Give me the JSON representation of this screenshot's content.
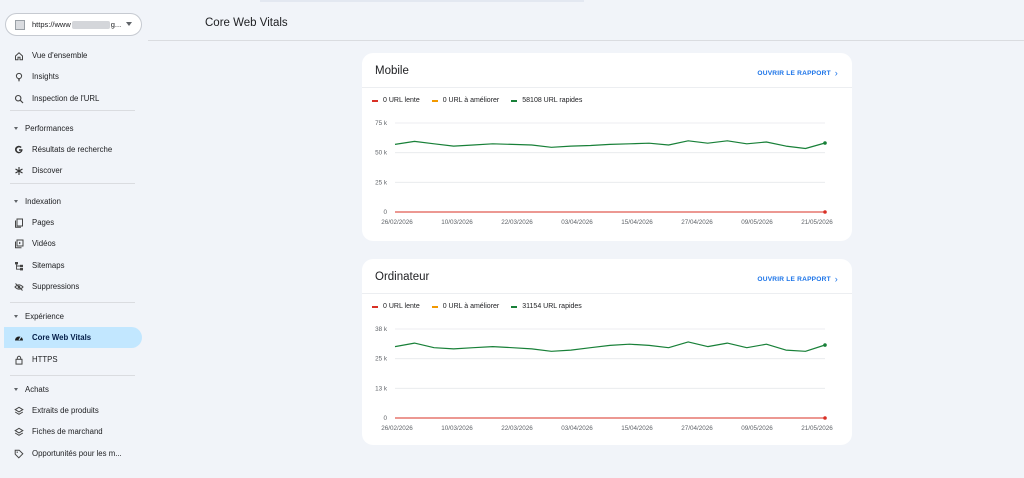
{
  "property": {
    "url": "https://www",
    "url_tail": "g..."
  },
  "sidebar": {
    "items_top": [
      {
        "label": "Vue d'ensemble",
        "icon": "home-icon"
      },
      {
        "label": "Insights",
        "icon": "lightbulb-icon"
      },
      {
        "label": "Inspection de l'URL",
        "icon": "search-icon"
      }
    ],
    "sections": [
      {
        "title": "Performances",
        "items": [
          {
            "label": "Résultats de recherche",
            "icon": "google-g-icon"
          },
          {
            "label": "Discover",
            "icon": "asterisk-icon"
          }
        ]
      },
      {
        "title": "Indexation",
        "items": [
          {
            "label": "Pages",
            "icon": "pages-icon"
          },
          {
            "label": "Vidéos",
            "icon": "video-icon"
          },
          {
            "label": "Sitemaps",
            "icon": "sitemap-icon"
          },
          {
            "label": "Suppressions",
            "icon": "eye-off-icon"
          }
        ]
      },
      {
        "title": "Expérience",
        "items": [
          {
            "label": "Core Web Vitals",
            "icon": "speedometer-icon",
            "active": true
          },
          {
            "label": "HTTPS",
            "icon": "lock-icon"
          }
        ]
      },
      {
        "title": "Achats",
        "items": [
          {
            "label": "Extraits de produits",
            "icon": "layers-icon"
          },
          {
            "label": "Fiches de marchand",
            "icon": "layers-icon"
          },
          {
            "label": "Opportunités pour les m...",
            "icon": "tag-icon"
          }
        ]
      }
    ]
  },
  "page": {
    "title": "Core Web Vitals"
  },
  "colors": {
    "slow": "#d93025",
    "improve": "#f29900",
    "fast": "#188038",
    "link": "#1a73e8",
    "active_nav": "#c2e7ff"
  },
  "cards": [
    {
      "title": "Mobile",
      "link": "OUVRIR LE RAPPORT",
      "legend": [
        "0 URL lente",
        "0 URL à améliorer",
        "58108 URL rapides"
      ]
    },
    {
      "title": "Ordinateur",
      "link": "OUVRIR LE RAPPORT",
      "legend": [
        "0 URL lente",
        "0 URL à améliorer",
        "31154 URL rapides"
      ]
    }
  ],
  "chart_data": [
    {
      "type": "line",
      "title": "Mobile",
      "x": [
        "26/02/2026",
        "02/03/2026",
        "06/03/2026",
        "10/03/2026",
        "14/03/2026",
        "18/03/2026",
        "22/03/2026",
        "26/03/2026",
        "30/03/2026",
        "03/04/2026",
        "07/04/2026",
        "11/04/2026",
        "15/04/2026",
        "19/04/2026",
        "23/04/2026",
        "27/04/2026",
        "01/05/2026",
        "05/05/2026",
        "09/05/2026",
        "13/05/2026",
        "17/05/2026",
        "21/05/2026",
        "25/05/2026"
      ],
      "x_tick_labels": [
        "26/02/2026",
        "10/03/2026",
        "22/03/2026",
        "03/04/2026",
        "15/04/2026",
        "27/04/2026",
        "09/05/2026",
        "21/05/2026"
      ],
      "y_ticks": [
        "0",
        "25 k",
        "50 k",
        "75 k"
      ],
      "ylim": [
        0,
        75000
      ],
      "series": [
        {
          "name": "0 URL lente",
          "color": "#d93025",
          "values": [
            0,
            0,
            0,
            0,
            0,
            0,
            0,
            0,
            0,
            0,
            0,
            0,
            0,
            0,
            0,
            0,
            0,
            0,
            0,
            0,
            0,
            0,
            0
          ]
        },
        {
          "name": "58108 URL rapides",
          "color": "#188038",
          "values": [
            57000,
            59500,
            57500,
            55500,
            56500,
            57500,
            57000,
            56500,
            54500,
            55500,
            56000,
            57000,
            57500,
            58000,
            56500,
            60000,
            58000,
            60000,
            57500,
            59000,
            55500,
            53500,
            58108
          ]
        }
      ]
    },
    {
      "type": "line",
      "title": "Ordinateur",
      "x": [
        "26/02/2026",
        "02/03/2026",
        "06/03/2026",
        "10/03/2026",
        "14/03/2026",
        "18/03/2026",
        "22/03/2026",
        "26/03/2026",
        "30/03/2026",
        "03/04/2026",
        "07/04/2026",
        "11/04/2026",
        "15/04/2026",
        "19/04/2026",
        "23/04/2026",
        "27/04/2026",
        "01/05/2026",
        "05/05/2026",
        "09/05/2026",
        "13/05/2026",
        "17/05/2026",
        "21/05/2026",
        "25/05/2026"
      ],
      "x_tick_labels": [
        "26/02/2026",
        "10/03/2026",
        "22/03/2026",
        "03/04/2026",
        "15/04/2026",
        "27/04/2026",
        "09/05/2026",
        "21/05/2026"
      ],
      "y_ticks": [
        "0",
        "13 k",
        "25 k",
        "38 k"
      ],
      "ylim": [
        0,
        38000
      ],
      "series": [
        {
          "name": "0 URL lente",
          "color": "#d93025",
          "values": [
            0,
            0,
            0,
            0,
            0,
            0,
            0,
            0,
            0,
            0,
            0,
            0,
            0,
            0,
            0,
            0,
            0,
            0,
            0,
            0,
            0,
            0,
            0
          ]
        },
        {
          "name": "31154 URL rapides",
          "color": "#188038",
          "values": [
            30500,
            32000,
            30000,
            29500,
            30000,
            30500,
            30000,
            29500,
            28500,
            29000,
            30000,
            31000,
            31500,
            31000,
            30000,
            32500,
            30500,
            32000,
            30000,
            31500,
            29000,
            28500,
            31154
          ]
        }
      ]
    }
  ]
}
